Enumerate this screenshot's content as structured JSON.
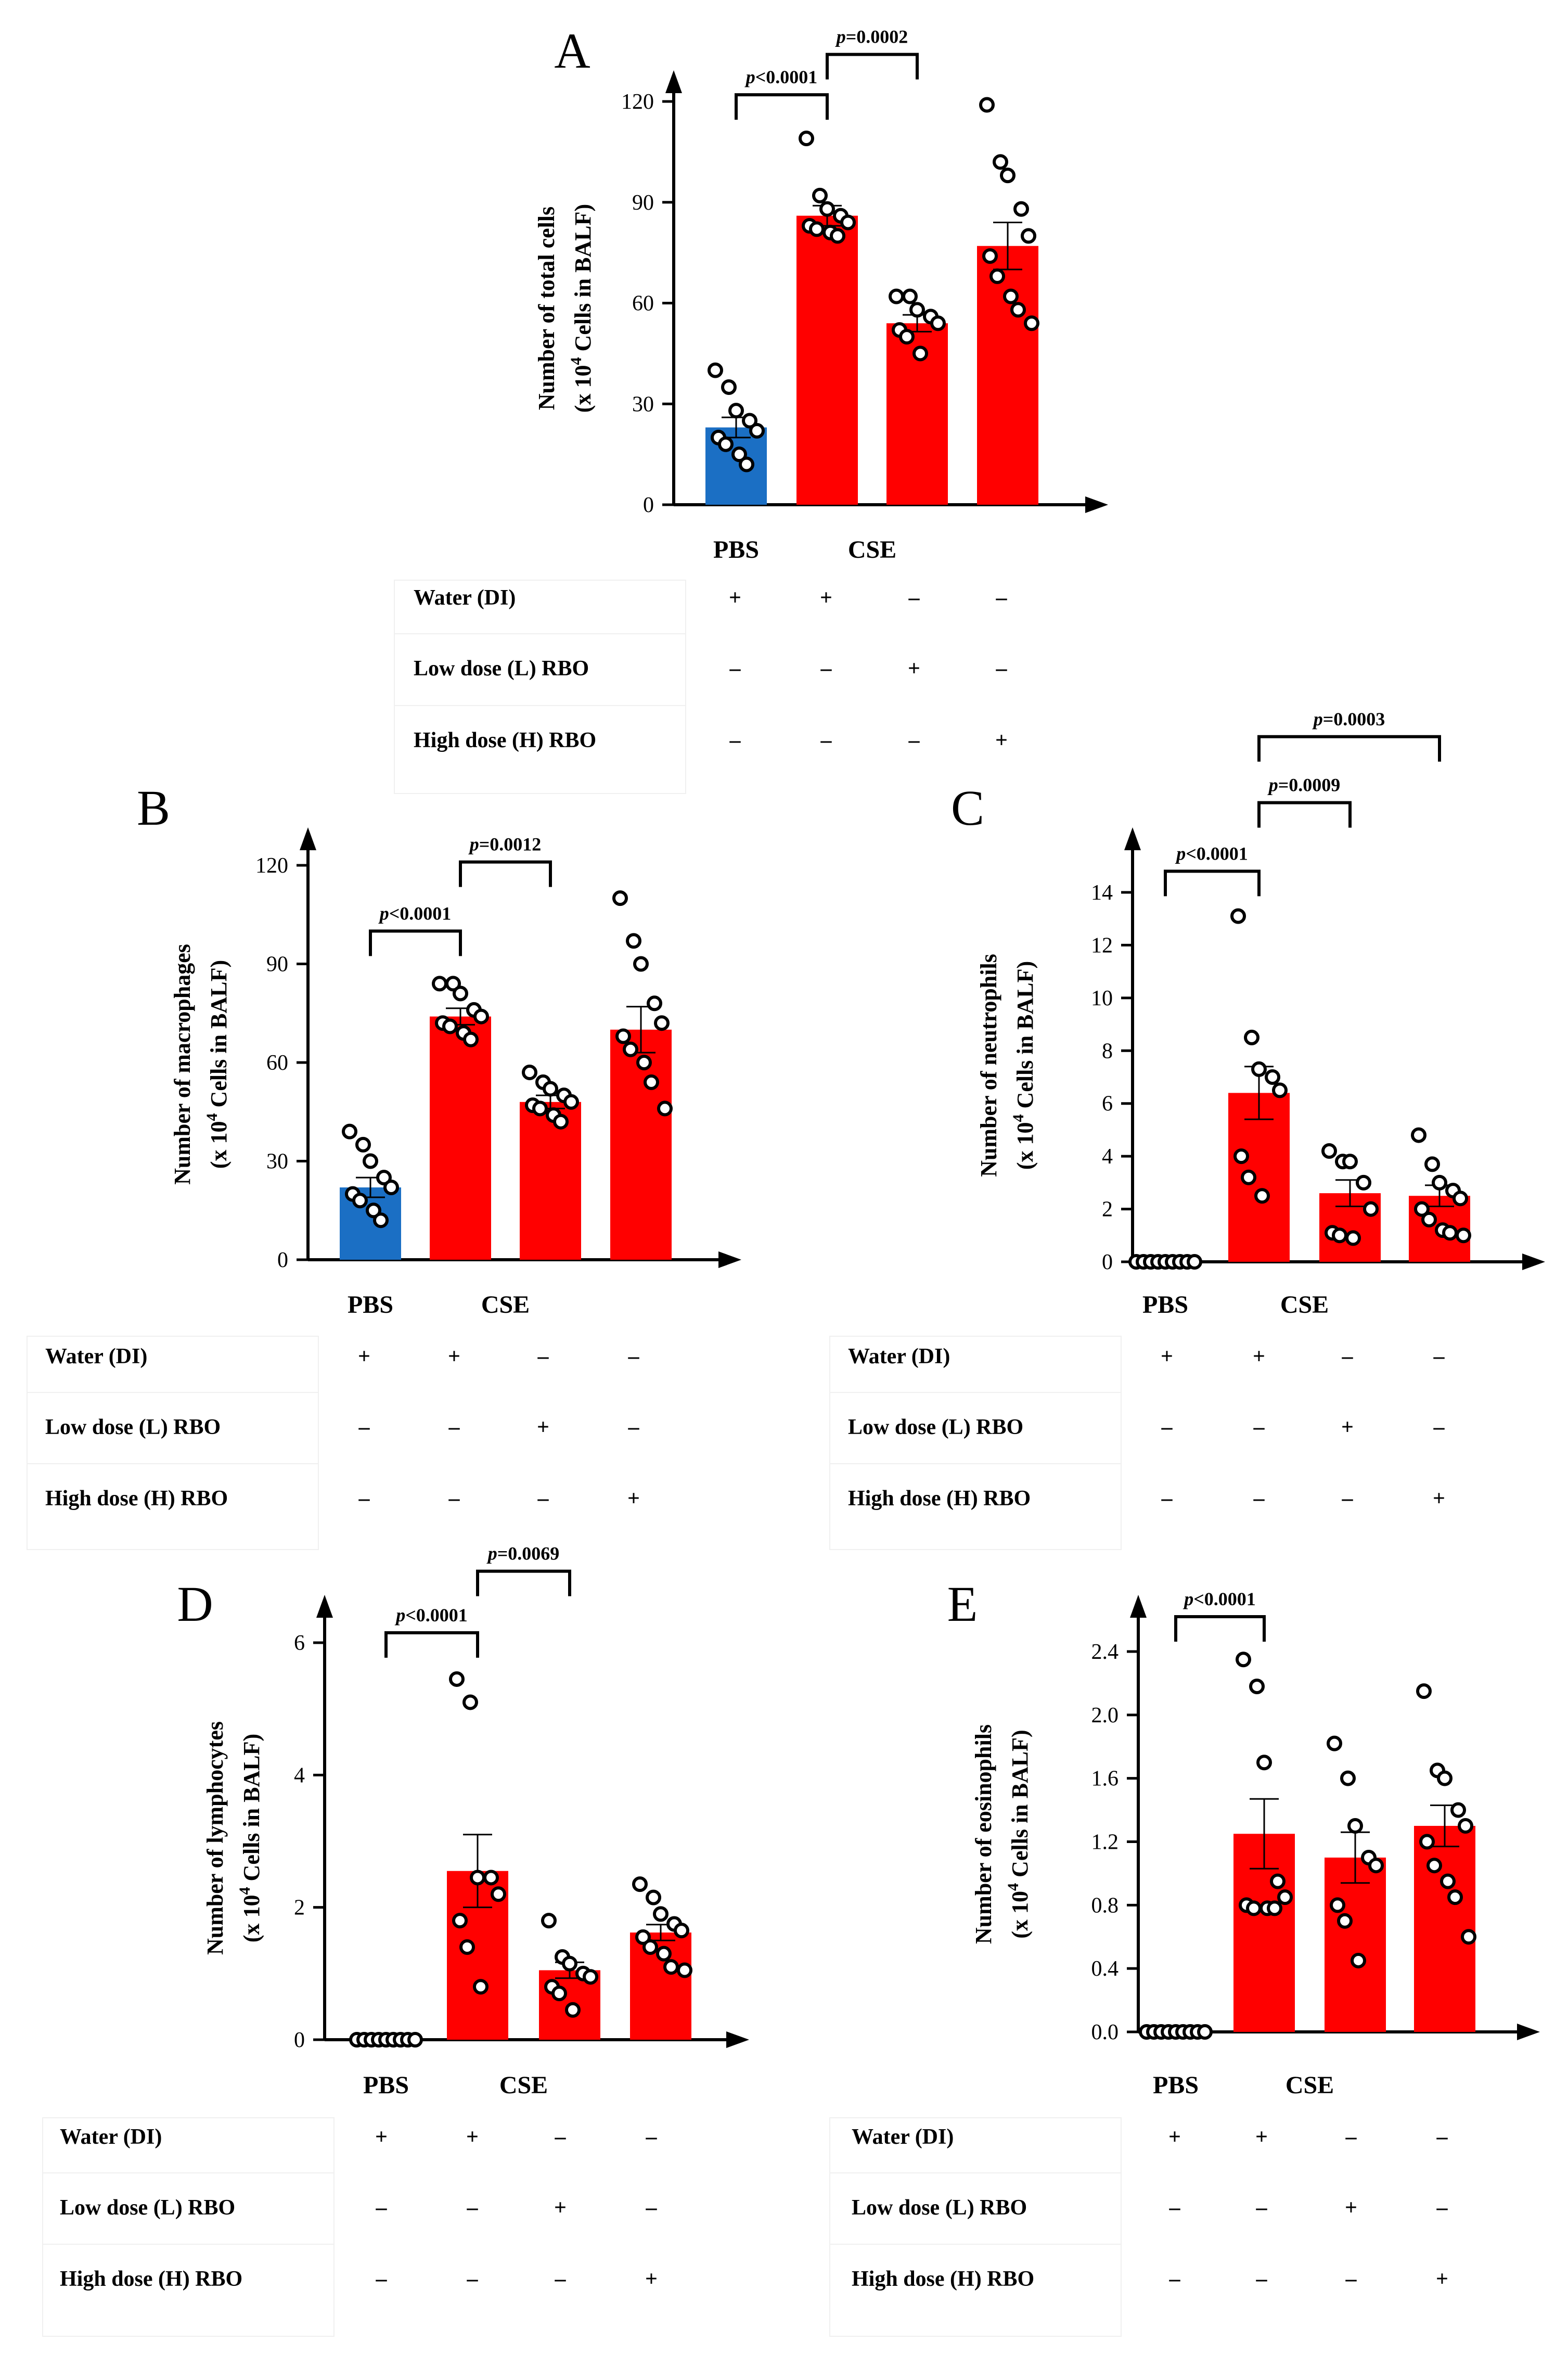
{
  "legend_rows": {
    "water": "Water (DI)",
    "low": "Low dose (L) RBO",
    "high": "High dose (H) RBO"
  },
  "group_labels": {
    "pbs": "PBS",
    "cse": "CSE"
  },
  "treatment_table": {
    "water": [
      "+",
      "+",
      "–",
      "–"
    ],
    "low": [
      "–",
      "–",
      "+",
      "–"
    ],
    "high": [
      "–",
      "–",
      "–",
      "+"
    ]
  },
  "colors": {
    "pbs_bar": "#1b6fc4",
    "cse_bar": "#ff0000",
    "points": "#000000"
  },
  "chart_data": [
    {
      "panel": "A",
      "type": "bar",
      "ylabel": "Number of total cells (x 10^4 Cells in BALF)",
      "ylabel_line1": "Number of total cells",
      "ylabel_line2_pre": "(x 10",
      "ylabel_line2_sup": "4",
      "ylabel_line2_post": " Cells in BALF)",
      "ylim": [
        0,
        130
      ],
      "yticks": [
        0,
        30,
        60,
        90,
        120
      ],
      "ytick_labels": [
        "0",
        "30",
        "60",
        "90",
        "120"
      ],
      "means": [
        23,
        86,
        54,
        77
      ],
      "sem": [
        3,
        3,
        2.5,
        7
      ],
      "points": [
        [
          40,
          35,
          28,
          25,
          22,
          20,
          18,
          15,
          12
        ],
        [
          109,
          92,
          88,
          86,
          84,
          83,
          82,
          81,
          80
        ],
        [
          62,
          62,
          58,
          56,
          54,
          52,
          50,
          45
        ],
        [
          119,
          102,
          98,
          88,
          80,
          74,
          68,
          62,
          58,
          54
        ]
      ],
      "zero_group": false,
      "significance": [
        {
          "label": "p<0.0001",
          "pfx": "p",
          "txt": "<0.0001",
          "from": 0,
          "to": 1,
          "y": 122
        },
        {
          "label": "p=0.0002",
          "pfx": "p",
          "txt": "=0.0002",
          "from": 1,
          "to": 2,
          "y": 134
        }
      ]
    },
    {
      "panel": "B",
      "type": "bar",
      "ylabel": "Number of macrophages (x 10^4 Cells in BALF)",
      "ylabel_line1": "Number of macrophages",
      "ylabel_line2_pre": "(x 10",
      "ylabel_line2_sup": "4",
      "ylabel_line2_post": " Cells in BALF)",
      "ylim": [
        0,
        130
      ],
      "yticks": [
        0,
        30,
        60,
        90,
        120
      ],
      "ytick_labels": [
        "0",
        "30",
        "60",
        "90",
        "120"
      ],
      "means": [
        22,
        74,
        48,
        70
      ],
      "sem": [
        3,
        2.5,
        2,
        7
      ],
      "points": [
        [
          39,
          35,
          30,
          25,
          22,
          20,
          18,
          15,
          12
        ],
        [
          84,
          84,
          81,
          76,
          74,
          72,
          71,
          69,
          67
        ],
        [
          57,
          54,
          52,
          50,
          48,
          47,
          46,
          44,
          42
        ],
        [
          110,
          97,
          90,
          78,
          72,
          68,
          64,
          60,
          54,
          46
        ]
      ],
      "zero_group": false,
      "significance": [
        {
          "label": "p<0.0001",
          "pfx": "p",
          "txt": "<0.0001",
          "from": 0,
          "to": 1,
          "y": 100
        },
        {
          "label": "p=0.0012",
          "pfx": "p",
          "txt": "=0.0012",
          "from": 1,
          "to": 2,
          "y": 121
        }
      ]
    },
    {
      "panel": "C",
      "type": "bar",
      "ylabel": "Number of neutrophils (x 10^4 Cells in BALF)",
      "ylabel_line1": "Number of neutrophils",
      "ylabel_line2_pre": "(x 10",
      "ylabel_line2_sup": "4",
      "ylabel_line2_post": " Cells in BALF)",
      "ylim": [
        0,
        16
      ],
      "yticks": [
        0,
        2,
        4,
        6,
        8,
        10,
        12,
        14
      ],
      "ytick_labels": [
        "0",
        "2",
        "4",
        "6",
        "8",
        "10",
        "12",
        "14"
      ],
      "means": [
        0,
        6.4,
        2.6,
        2.5
      ],
      "sem": [
        0,
        1.0,
        0.5,
        0.4
      ],
      "points": [
        [
          0,
          0,
          0,
          0,
          0,
          0,
          0,
          0,
          0
        ],
        [
          13.1,
          8.5,
          7.3,
          7.0,
          6.5,
          4.0,
          3.2,
          2.5
        ],
        [
          4.2,
          3.8,
          3.8,
          3.0,
          2.0,
          1.1,
          1.0,
          0.9
        ],
        [
          4.8,
          3.7,
          3.0,
          2.7,
          2.4,
          2.0,
          1.6,
          1.2,
          1.1,
          1.0
        ]
      ],
      "zero_group": true,
      "significance": [
        {
          "label": "p<0.0001",
          "pfx": "p",
          "txt": "<0.0001",
          "from": 0,
          "to": 1,
          "y": 14.8
        },
        {
          "label": "p=0.0009",
          "pfx": "p",
          "txt": "=0.0009",
          "from": 1,
          "to": 2,
          "y": 17.4
        },
        {
          "label": "p=0.0003",
          "pfx": "p",
          "txt": "=0.0003",
          "from": 1,
          "to": 3,
          "y": 19.9
        }
      ]
    },
    {
      "panel": "D",
      "type": "bar",
      "ylabel": "Number of lymphocytes (x 10^4 Cells in BALF)",
      "ylabel_line1": "Number of lymphocytes",
      "ylabel_line2_pre": "(x 10",
      "ylabel_line2_sup": "4",
      "ylabel_line2_post": " Cells in BALF)",
      "ylim": [
        0,
        6.3
      ],
      "yticks": [
        0,
        2,
        4,
        6
      ],
      "ytick_labels": [
        "0",
        "2",
        "4",
        "6"
      ],
      "means": [
        0,
        2.55,
        1.05,
        1.62
      ],
      "sem": [
        0,
        0.55,
        0.12,
        0.12
      ],
      "points": [
        [
          0,
          0,
          0,
          0,
          0,
          0,
          0,
          0,
          0
        ],
        [
          5.45,
          5.1,
          2.45,
          2.45,
          2.2,
          1.8,
          1.4,
          0.8
        ],
        [
          1.8,
          1.25,
          1.15,
          1.0,
          0.95,
          0.8,
          0.7,
          0.45
        ],
        [
          2.35,
          2.15,
          1.9,
          1.75,
          1.65,
          1.55,
          1.4,
          1.3,
          1.1,
          1.05
        ]
      ],
      "zero_group": true,
      "significance": [
        {
          "label": "p<0.0001",
          "pfx": "p",
          "txt": "<0.0001",
          "from": 0,
          "to": 1,
          "y": 6.15
        },
        {
          "label": "p=0.0069",
          "pfx": "p",
          "txt": "=0.0069",
          "from": 1,
          "to": 2,
          "y": 7.08
        }
      ]
    },
    {
      "panel": "E",
      "type": "bar",
      "ylabel": "Number of eosinophils (x 10^4 Cells in BALF)",
      "ylabel_line1": "Number of eosinophils",
      "ylabel_line2_pre": "(x 10",
      "ylabel_line2_sup": "4",
      "ylabel_line2_post": " Cells in BALF)",
      "ylim": [
        0,
        2.6
      ],
      "yticks": [
        0,
        0.4,
        0.8,
        1.2,
        1.6,
        2.0,
        2.4
      ],
      "ytick_labels": [
        "0.0",
        "0.4",
        "0.8",
        "1.2",
        "1.6",
        "2.0",
        "2.4"
      ],
      "means": [
        0,
        1.25,
        1.1,
        1.3
      ],
      "sem": [
        0,
        0.22,
        0.16,
        0.13
      ],
      "points": [
        [
          0,
          0,
          0,
          0,
          0,
          0,
          0,
          0,
          0
        ],
        [
          2.35,
          2.18,
          1.7,
          0.95,
          0.85,
          0.8,
          0.78,
          0.78,
          0.78
        ],
        [
          1.82,
          1.6,
          1.3,
          1.1,
          1.05,
          0.8,
          0.7,
          0.45
        ],
        [
          2.15,
          1.65,
          1.6,
          1.4,
          1.3,
          1.2,
          1.05,
          0.95,
          0.85,
          0.6
        ]
      ],
      "zero_group": true,
      "significance": [
        {
          "label": "p<0.0001",
          "pfx": "p",
          "txt": "<0.0001",
          "from": 0,
          "to": 1,
          "y": 2.62
        }
      ]
    }
  ]
}
